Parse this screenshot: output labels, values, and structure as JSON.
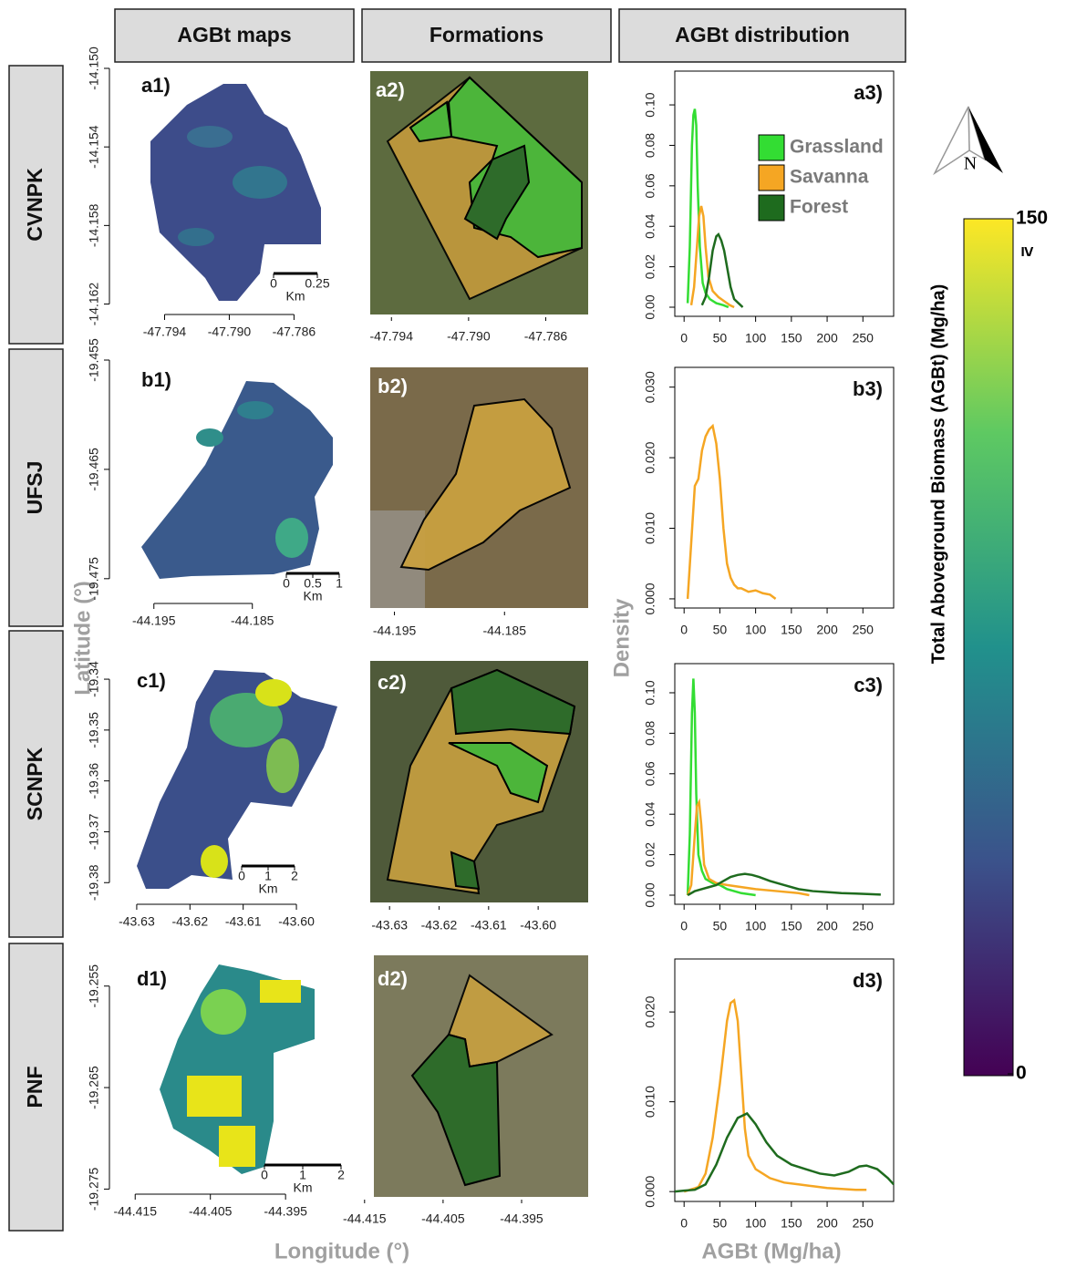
{
  "headers": [
    "AGBt maps",
    "Formations",
    "AGBt distribution"
  ],
  "rows": [
    "CVNPK",
    "UFSJ",
    "SCNPK",
    "PNF"
  ],
  "axis_labels": {
    "latitude": "Latitude (°)",
    "longitude": "Longitude (°)",
    "density": "Density",
    "agbt": "AGBt (Mg/ha)"
  },
  "north": "N",
  "colorbar": {
    "title": "Total Aboveground Biomass (AGBt)  (Mg/ha)",
    "ticks": [
      0,
      150
    ],
    "max_note": "≥"
  },
  "maps": [
    {
      "label": "a1)",
      "xlim": [
        -47.796,
        -47.7836
      ],
      "xticks": [
        -47.794,
        {
          "value": -47.79,
          "label": "-47.790"
        },
        -47.786
      ],
      "ylim": [
        -14.1623,
        -14.15
      ],
      "yticks": [
        {
          "value": -14.15,
          "label": "-14.150"
        },
        -14.154,
        -14.158,
        -14.162
      ],
      "scale_bar": [
        0,
        0.25
      ],
      "scale_unit": "Km"
    },
    {
      "label": "b1)",
      "xlim": [
        -44.1972,
        -44.1759
      ],
      "xticks": [
        -44.195,
        -44.185
      ],
      "ylim": [
        -19.4771,
        -19.454
      ],
      "yticks": [
        -19.455,
        -19.465,
        -19.475
      ],
      "scale_bar": [
        0,
        0.5,
        1
      ],
      "scale_unit": "Km"
    },
    {
      "label": "c1)",
      "xlim": [
        -43.6317,
        -43.5923
      ],
      "xticks": [
        -43.63,
        -43.62,
        -43.61,
        {
          "value": -43.6,
          "label": "-43.60"
        }
      ],
      "ylim": [
        -19.383,
        -19.3373
      ],
      "yticks": [
        -19.34,
        -19.35,
        -19.36,
        -19.37,
        -19.38
      ],
      "scale_bar": [
        0,
        1,
        2
      ],
      "scale_unit": "Km"
    },
    {
      "label": "d1)",
      "xlim": [
        -44.416,
        -44.3875
      ],
      "xticks": [
        -44.415,
        -44.405,
        -44.395
      ],
      "ylim": [
        -19.2755,
        -19.2526
      ],
      "yticks": [
        -19.255,
        -19.265,
        -19.275
      ],
      "scale_bar": [
        0,
        1,
        2
      ],
      "scale_unit": "Km"
    }
  ],
  "formations": [
    {
      "label": "a2)",
      "xlim": [
        -47.7951,
        -47.7838
      ],
      "xticks": [
        -47.794,
        {
          "value": -47.79,
          "label": "-47.790"
        },
        -47.786
      ]
    },
    {
      "label": "b2)",
      "xlim": [
        -44.1972,
        -44.1774
      ],
      "xticks": [
        -44.195,
        -44.185
      ]
    },
    {
      "label": "c2)",
      "xlim": [
        -43.6339,
        -43.5899
      ],
      "xticks": [
        -43.63,
        -43.62,
        -43.61,
        {
          "value": -43.6,
          "label": "-43.60"
        }
      ]
    },
    {
      "label": "d2)",
      "xlim": [
        -44.4173,
        -44.3871
      ],
      "xticks": [
        -44.415,
        -44.405,
        -44.395
      ]
    }
  ],
  "chart_data": [
    {
      "type": "line",
      "label": "a3)",
      "legend": true,
      "xlim": [
        -13,
        293
      ],
      "xticks": [
        0,
        50,
        100,
        150,
        200,
        250
      ],
      "ylim": [
        -0.0045,
        0.1167
      ],
      "yticks": [
        {
          "value": 0,
          "label": "0.00"
        },
        {
          "value": 0.02,
          "label": "0.02"
        },
        {
          "value": 0.04,
          "label": "0.04"
        },
        {
          "value": 0.06,
          "label": "0.06"
        },
        {
          "value": 0.08,
          "label": "0.08"
        },
        {
          "value": 0.1,
          "label": "0.10"
        }
      ],
      "series": [
        {
          "name": "Grassland",
          "color": "#33dd33",
          "x": [
            5,
            8,
            11,
            13,
            15,
            17,
            19,
            22,
            26,
            30,
            36,
            45,
            55,
            62
          ],
          "values": [
            0.002,
            0.03,
            0.08,
            0.095,
            0.098,
            0.09,
            0.06,
            0.03,
            0.012,
            0.007,
            0.004,
            0.002,
            0.001,
            0
          ]
        },
        {
          "name": "Savanna",
          "color": "#f5a623",
          "x": [
            10,
            14,
            18,
            21,
            24,
            27,
            30,
            34,
            40,
            48,
            56,
            64,
            70
          ],
          "values": [
            0.001,
            0.01,
            0.03,
            0.045,
            0.05,
            0.045,
            0.03,
            0.015,
            0.008,
            0.005,
            0.003,
            0.001,
            0
          ]
        },
        {
          "name": "Forest",
          "color": "#1e6b1e",
          "x": [
            25,
            30,
            35,
            40,
            45,
            48,
            52,
            56,
            60,
            65,
            70,
            76,
            82
          ],
          "values": [
            0.001,
            0.005,
            0.015,
            0.028,
            0.035,
            0.036,
            0.033,
            0.028,
            0.02,
            0.01,
            0.004,
            0.002,
            0
          ]
        }
      ]
    },
    {
      "type": "line",
      "label": "b3)",
      "legend": false,
      "xlim": [
        -13,
        293
      ],
      "xticks": [
        0,
        50,
        100,
        150,
        200,
        250
      ],
      "ylim": [
        -0.0013,
        0.0328
      ],
      "yticks": [
        {
          "value": 0,
          "label": "0.000"
        },
        {
          "value": 0.01,
          "label": "0.010"
        },
        {
          "value": 0.02,
          "label": "0.020"
        },
        {
          "value": 0.03,
          "label": "0.030"
        }
      ],
      "series": [
        {
          "name": "Savanna",
          "color": "#f5a623",
          "x": [
            5,
            10,
            15,
            20,
            25,
            30,
            35,
            40,
            45,
            50,
            55,
            60,
            65,
            70,
            75,
            80,
            90,
            100,
            110,
            120,
            128
          ],
          "values": [
            0,
            0.008,
            0.016,
            0.017,
            0.021,
            0.023,
            0.024,
            0.0245,
            0.022,
            0.017,
            0.01,
            0.005,
            0.003,
            0.002,
            0.0015,
            0.0015,
            0.001,
            0.0012,
            0.0008,
            0.0006,
            0
          ]
        }
      ]
    },
    {
      "type": "line",
      "label": "c3)",
      "legend": false,
      "xlim": [
        -13,
        293
      ],
      "xticks": [
        0,
        50,
        100,
        150,
        200,
        250
      ],
      "ylim": [
        -0.0045,
        0.1144
      ],
      "yticks": [
        {
          "value": 0,
          "label": "0.00"
        },
        {
          "value": 0.02,
          "label": "0.02"
        },
        {
          "value": 0.04,
          "label": "0.04"
        },
        {
          "value": 0.06,
          "label": "0.06"
        },
        {
          "value": 0.08,
          "label": "0.08"
        },
        {
          "value": 0.1,
          "label": "0.10"
        }
      ],
      "series": [
        {
          "name": "Grassland",
          "color": "#33dd33",
          "x": [
            5,
            8,
            11,
            13,
            15,
            17,
            20,
            25,
            30,
            40,
            50,
            60,
            80,
            100
          ],
          "values": [
            0,
            0.03,
            0.09,
            0.107,
            0.09,
            0.05,
            0.02,
            0.012,
            0.008,
            0.006,
            0.005,
            0.003,
            0.001,
            0
          ]
        },
        {
          "name": "Savanna",
          "color": "#f5a623",
          "x": [
            5,
            10,
            15,
            18,
            21,
            24,
            28,
            35,
            45,
            60,
            80,
            100,
            130,
            160,
            175
          ],
          "values": [
            0,
            0.005,
            0.03,
            0.044,
            0.046,
            0.035,
            0.015,
            0.008,
            0.006,
            0.005,
            0.004,
            0.003,
            0.002,
            0.001,
            0
          ]
        },
        {
          "name": "Forest",
          "color": "#1e6b1e",
          "x": [
            5,
            15,
            25,
            35,
            45,
            55,
            65,
            75,
            85,
            95,
            105,
            120,
            140,
            160,
            180,
            200,
            220,
            240,
            260,
            275
          ],
          "values": [
            0,
            0.002,
            0.003,
            0.004,
            0.005,
            0.007,
            0.009,
            0.01,
            0.0105,
            0.01,
            0.009,
            0.007,
            0.005,
            0.003,
            0.002,
            0.0015,
            0.001,
            0.0008,
            0.0005,
            0.0003
          ]
        }
      ]
    },
    {
      "type": "line",
      "label": "d3)",
      "legend": false,
      "xlim": [
        -13,
        293
      ],
      "xticks": [
        0,
        50,
        100,
        150,
        200,
        250
      ],
      "ylim": [
        -0.0011,
        0.0259
      ],
      "yticks": [
        {
          "value": 0,
          "label": "0.000"
        },
        {
          "value": 0.01,
          "label": "0.010"
        },
        {
          "value": 0.02,
          "label": "0.020"
        }
      ],
      "series": [
        {
          "name": "Savanna",
          "color": "#f5a623",
          "x": [
            0,
            20,
            30,
            40,
            50,
            60,
            65,
            70,
            75,
            80,
            85,
            90,
            100,
            110,
            120,
            140,
            160,
            180,
            200,
            220,
            240,
            255
          ],
          "values": [
            0,
            0.0005,
            0.002,
            0.006,
            0.012,
            0.019,
            0.021,
            0.0213,
            0.019,
            0.013,
            0.007,
            0.004,
            0.0025,
            0.002,
            0.0015,
            0.001,
            0.0008,
            0.0006,
            0.0004,
            0.0003,
            0.0002,
            0.0002
          ]
        },
        {
          "name": "Forest",
          "color": "#1e6b1e",
          "x": [
            -13,
            0,
            15,
            30,
            45,
            60,
            75,
            88,
            100,
            115,
            130,
            150,
            170,
            190,
            210,
            230,
            245,
            255,
            270,
            285,
            293
          ],
          "values": [
            0,
            0.0001,
            0.0002,
            0.0008,
            0.003,
            0.006,
            0.0082,
            0.0087,
            0.0075,
            0.0055,
            0.004,
            0.003,
            0.0025,
            0.002,
            0.0018,
            0.0022,
            0.0028,
            0.0029,
            0.0025,
            0.0015,
            0.0008
          ]
        }
      ]
    }
  ]
}
